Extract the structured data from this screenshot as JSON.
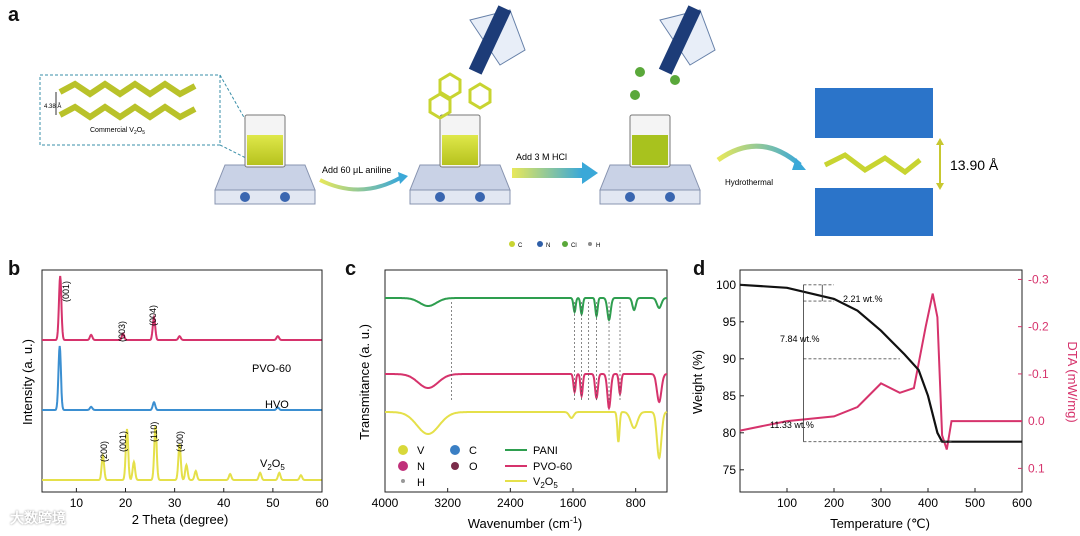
{
  "panels": {
    "a": {
      "label": "a",
      "inset_spacing": "4.38 Å",
      "inset_caption_main": "Commercial V",
      "inset_caption_sub": "2",
      "inset_caption_main2": "O",
      "inset_caption_sub2": "5",
      "step1": "Add 60 μL aniline",
      "step2": "Add  3 M HCl",
      "step3": "Hydrothermal",
      "interlayer": "13.90 Å",
      "legend": [
        {
          "label": "C",
          "color": "#c8d431"
        },
        {
          "label": "N",
          "color": "#2f5fa8"
        },
        {
          "label": "Cl",
          "color": "#5aa83a"
        },
        {
          "label": "H",
          "color": "#8a8a8a"
        }
      ]
    },
    "b": {
      "label": "b"
    },
    "c": {
      "label": "c"
    },
    "d": {
      "label": "d"
    }
  },
  "watermark": "大数跨境",
  "chart_data": [
    {
      "type": "line",
      "panel": "b",
      "xlabel": "2 Theta (degree)",
      "ylabel": "Intensity (a. u.)",
      "xlim": [
        3,
        60
      ],
      "xticks": [
        10,
        20,
        30,
        40,
        50,
        60
      ],
      "series": [
        {
          "name": "PVO-60",
          "color": "#d6336c",
          "offset": 2,
          "peaks": [
            [
              6.7,
              1.0
            ],
            [
              13.0,
              0.08
            ],
            [
              19.5,
              0.1
            ],
            [
              25.8,
              0.35
            ],
            [
              31.0,
              0.06
            ],
            [
              51.0,
              0.06
            ]
          ]
        },
        {
          "name": "HVO",
          "color": "#3b8fd1",
          "offset": 1,
          "peaks": [
            [
              6.6,
              1.0
            ],
            [
              13.0,
              0.05
            ],
            [
              25.8,
              0.12
            ],
            [
              51.0,
              0.04
            ]
          ]
        },
        {
          "name": "V2O5",
          "color": "#e5e04a",
          "offset": 0,
          "peaks": [
            [
              15.4,
              0.4
            ],
            [
              20.3,
              0.85
            ],
            [
              21.7,
              0.3
            ],
            [
              26.1,
              0.9
            ],
            [
              31.0,
              0.6
            ],
            [
              32.4,
              0.25
            ],
            [
              34.3,
              0.15
            ],
            [
              41.3,
              0.1
            ],
            [
              47.4,
              0.12
            ],
            [
              51.3,
              0.12
            ],
            [
              55.7,
              0.08
            ]
          ]
        }
      ],
      "annotations": [
        "(001)",
        "(003)",
        "(004)",
        "(200)",
        "(001)",
        "(110)",
        "(400)"
      ],
      "series_labels": [
        "PVO-60",
        "HVO",
        "V",
        "2",
        "O",
        "5"
      ]
    },
    {
      "type": "line",
      "panel": "c",
      "xlabel": "Wavenumber (cm",
      "xlabel_sup": "-1",
      "xlabel_end": ")",
      "ylabel": "Transmitance (a. u.)",
      "xlim": [
        4000,
        400
      ],
      "xticks": [
        4000,
        3200,
        2400,
        1600,
        800
      ],
      "series": [
        {
          "name": "PANI",
          "color": "#2e9e4f"
        },
        {
          "name": "PVO-60",
          "color": "#d6336c"
        },
        {
          "name": "V2O5",
          "color": "#e5e04a"
        }
      ],
      "legend_labels": [
        "V",
        "C",
        "N",
        "O",
        "H",
        "PANI",
        "PVO-60",
        "V",
        "2",
        "O",
        "5"
      ]
    },
    {
      "type": "line",
      "panel": "d",
      "xlabel": "Temperature (℃)",
      "ylabel": "Weight (%)",
      "y2label": "DTA (mW/mg)",
      "xlim": [
        0,
        600
      ],
      "ylim": [
        72,
        102
      ],
      "y2lim": [
        0.15,
        -0.32
      ],
      "xticks": [
        100,
        200,
        300,
        400,
        500,
        600
      ],
      "yticks": [
        75,
        80,
        85,
        90,
        95,
        100
      ],
      "y2ticks": [
        "-0.3",
        "-0.2",
        "-0.1",
        "0.0",
        "0.1"
      ],
      "y2tick_values": [
        -0.3,
        -0.2,
        -0.1,
        0.0,
        0.1
      ],
      "weight": [
        [
          0,
          100
        ],
        [
          100,
          99.6
        ],
        [
          200,
          98.1
        ],
        [
          250,
          96.5
        ],
        [
          300,
          93.8
        ],
        [
          350,
          90.6
        ],
        [
          380,
          88.5
        ],
        [
          400,
          85
        ],
        [
          420,
          80
        ],
        [
          430,
          78.8
        ],
        [
          600,
          78.8
        ]
      ],
      "dta": [
        [
          0,
          0.02
        ],
        [
          100,
          0.0
        ],
        [
          200,
          -0.01
        ],
        [
          250,
          -0.03
        ],
        [
          300,
          -0.08
        ],
        [
          340,
          -0.06
        ],
        [
          370,
          -0.07
        ],
        [
          395,
          -0.2
        ],
        [
          410,
          -0.27
        ],
        [
          420,
          -0.22
        ],
        [
          430,
          0.03
        ],
        [
          440,
          0.06
        ],
        [
          450,
          0.0
        ],
        [
          600,
          0.0
        ]
      ],
      "annotations": [
        "2.21 wt.%",
        "7.84 wt.%",
        "11.33 wt.%"
      ]
    }
  ]
}
